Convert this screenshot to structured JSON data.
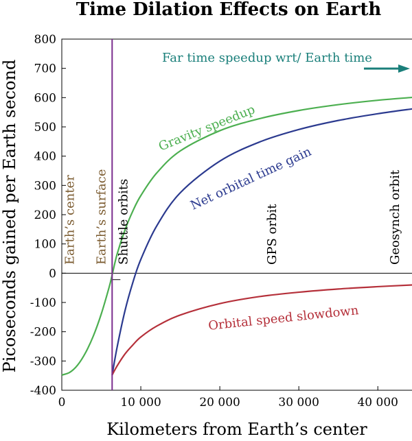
{
  "chart_data": {
    "type": "line",
    "title": "Time Dilation Effects on Earth",
    "xlabel": "Kilometers from Earth’s center",
    "ylabel": "Picoseconds gained per Earth second",
    "xlim": [
      0,
      44500
    ],
    "ylim": [
      -400,
      800
    ],
    "x_ticks": [
      {
        "value": 0,
        "label": "0"
      },
      {
        "value": 10000,
        "label": "10 000"
      },
      {
        "value": 20000,
        "label": "20 000"
      },
      {
        "value": 30000,
        "label": "30 000"
      },
      {
        "value": 40000,
        "label": "40 000"
      }
    ],
    "y_ticks": [
      {
        "value": 800,
        "label": "800"
      },
      {
        "value": 700,
        "label": "700"
      },
      {
        "value": 600,
        "label": "600"
      },
      {
        "value": 500,
        "label": "500"
      },
      {
        "value": 400,
        "label": "400"
      },
      {
        "value": 300,
        "label": "300"
      },
      {
        "value": 200,
        "label": "200"
      },
      {
        "value": 100,
        "label": "100"
      },
      {
        "value": 0,
        "label": "0"
      },
      {
        "value": -100,
        "label": "-100"
      },
      {
        "value": -200,
        "label": "-200"
      },
      {
        "value": -300,
        "label": "-300"
      },
      {
        "value": -400,
        "label": "-400"
      }
    ],
    "grid": false,
    "series": [
      {
        "name": "Gravity speedup",
        "color": "#4caf50",
        "x": [
          0,
          1000,
          2000,
          3000,
          4000,
          5000,
          6000,
          6371,
          7000,
          8000,
          9000,
          10000,
          12000,
          15000,
          20000,
          25000,
          30000,
          35000,
          40000,
          44500
        ],
        "y": [
          -348,
          -339,
          -314,
          -272,
          -214,
          -139,
          -47,
          -6,
          65,
          148,
          213,
          265,
          342,
          418,
          487,
          528,
          556,
          576,
          591,
          601
        ]
      },
      {
        "name": "Net orbital time gain",
        "color": "#2b3a8f",
        "x": [
          6371,
          7000,
          8000,
          9000,
          10000,
          12000,
          15000,
          20000,
          25000,
          30000,
          35000,
          40000,
          44500
        ],
        "y": [
          -348,
          -253,
          -128,
          -31,
          47,
          161,
          275,
          383,
          448,
          491,
          522,
          545,
          562
        ]
      },
      {
        "name": "Orbital speed slowdown",
        "color": "#b5303a",
        "x": [
          6371,
          7000,
          8000,
          9000,
          10000,
          12000,
          15000,
          20000,
          25000,
          30000,
          35000,
          40000,
          44500
        ],
        "y": [
          -348,
          -317,
          -276,
          -245,
          -218,
          -181,
          -143,
          -104,
          -80,
          -65,
          -54,
          -46,
          -40
        ]
      }
    ],
    "annotations": [
      {
        "text": "Far time speedup wrt/ Earth time",
        "color": "#1a7f7a"
      },
      {
        "text": "Gravity speedup",
        "color": "#4caf50"
      },
      {
        "text": "Net orbital time gain",
        "color": "#2b3a8f"
      },
      {
        "text": "Orbital speed slowdown",
        "color": "#b5303a"
      }
    ],
    "vertical_markers": [
      {
        "text": "Earth’s center",
        "color": "#7a5a2e",
        "x": 1000
      },
      {
        "text": "Earth’s surface",
        "color": "#7a5a2e",
        "x": 5000
      },
      {
        "text": "Shuttle orbits",
        "color": "#000000",
        "x": 7800
      },
      {
        "text": "GPS orbit",
        "color": "#000000",
        "x": 26600
      },
      {
        "text": "Geosynch orbit",
        "color": "#000000",
        "x": 42164
      }
    ],
    "surface_line": {
      "x": 6371,
      "color": "#7b2d8e"
    },
    "far_time_arrow_color": "#1a7f7a"
  }
}
